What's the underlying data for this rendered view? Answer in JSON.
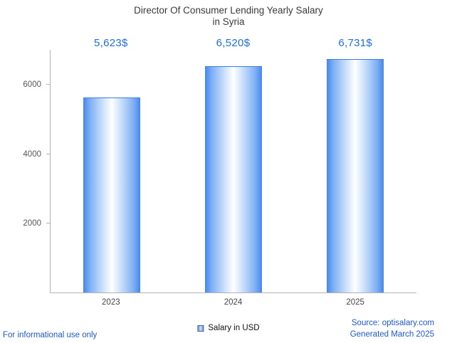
{
  "chart_data": {
    "type": "bar",
    "title": "Director Of Consumer Lending Yearly Salary in Syria",
    "title_lines": [
      "Director Of Consumer Lending Yearly Salary",
      "in Syria"
    ],
    "categories": [
      "2023",
      "2024",
      "2025"
    ],
    "values": [
      5623,
      6520,
      6731
    ],
    "value_labels": [
      "5,623$",
      "6,520$",
      "6,731$"
    ],
    "series_name": "Salary in USD",
    "xlabel": "",
    "ylabel": "",
    "ylim": [
      0,
      7000
    ],
    "yticks": [
      2000,
      4000,
      6000
    ],
    "grid": false,
    "legend_position": "bottom",
    "colors": {
      "bar_edge": "#4487ee",
      "bar_center": "#ffffff",
      "value_label": "#1e6fe0",
      "axis": "#b3b3b3",
      "title": "#3a3a3a",
      "footer_link": "#1d58d8"
    }
  },
  "legend": {
    "label": "Salary in USD"
  },
  "footer": {
    "disclaimer": "For informational use only",
    "source": "Source: optisalary.com",
    "generated": "Generated March 2025"
  }
}
